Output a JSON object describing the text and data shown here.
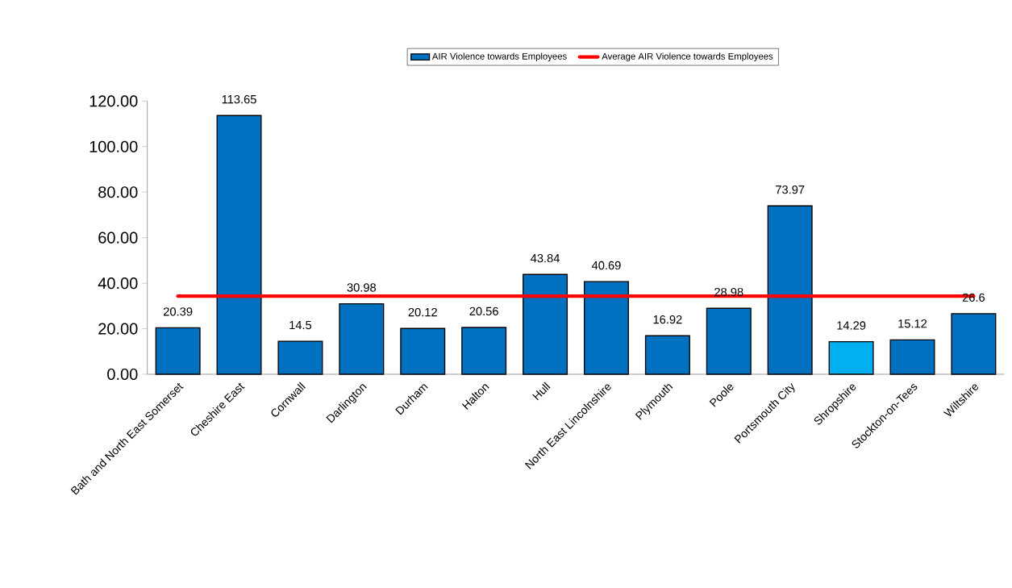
{
  "chart_data": {
    "type": "bar",
    "categories": [
      "Bath and North East Somerset",
      "Cheshire East",
      "Cornwall",
      "Darlington",
      "Durham",
      "Halton",
      "Hull",
      "North East Lincolnshire",
      "Plymouth",
      "Poole",
      "Portsmouth City",
      "Shropshire",
      "Stockton-on-Tees",
      "Wiltshire"
    ],
    "series": [
      {
        "name": "AIR Violence towards Employees",
        "color": "#0070c0",
        "values": [
          20.39,
          113.65,
          14.5,
          30.98,
          20.12,
          20.56,
          43.84,
          40.69,
          16.92,
          28.98,
          73.97,
          14.29,
          15.12,
          26.6
        ],
        "value_labels": [
          "20.39",
          "113.65",
          "14.5",
          "30.98",
          "20.12",
          "20.56",
          "43.84",
          "40.69",
          "16.92",
          "28.98",
          "73.97",
          "14.29",
          "15.12",
          "26.6"
        ],
        "colors": [
          "#0070c0",
          "#0070c0",
          "#0070c0",
          "#0070c0",
          "#0070c0",
          "#0070c0",
          "#0070c0",
          "#0070c0",
          "#0070c0",
          "#0070c0",
          "#0070c0",
          "#00b0f0",
          "#0070c0",
          "#0070c0"
        ]
      },
      {
        "name": "Average AIR Violence towards Employees",
        "type": "line",
        "color": "#ff0000",
        "values": [
          34.3,
          34.3,
          34.3,
          34.3,
          34.3,
          34.3,
          34.3,
          34.3,
          34.3,
          34.3,
          34.3,
          34.3,
          34.3,
          34.3
        ]
      }
    ],
    "ylim": [
      0,
      120
    ],
    "yticks": [
      {
        "value": 0,
        "label": "0.00"
      },
      {
        "value": 20,
        "label": "20.00"
      },
      {
        "value": 40,
        "label": "40.00"
      },
      {
        "value": 60,
        "label": "60.00"
      },
      {
        "value": 80,
        "label": "80.00"
      },
      {
        "value": 100,
        "label": "100.00"
      },
      {
        "value": 120,
        "label": "120.00"
      }
    ],
    "grid": false,
    "legend": "top",
    "marker": "none",
    "line_style": "solid"
  }
}
